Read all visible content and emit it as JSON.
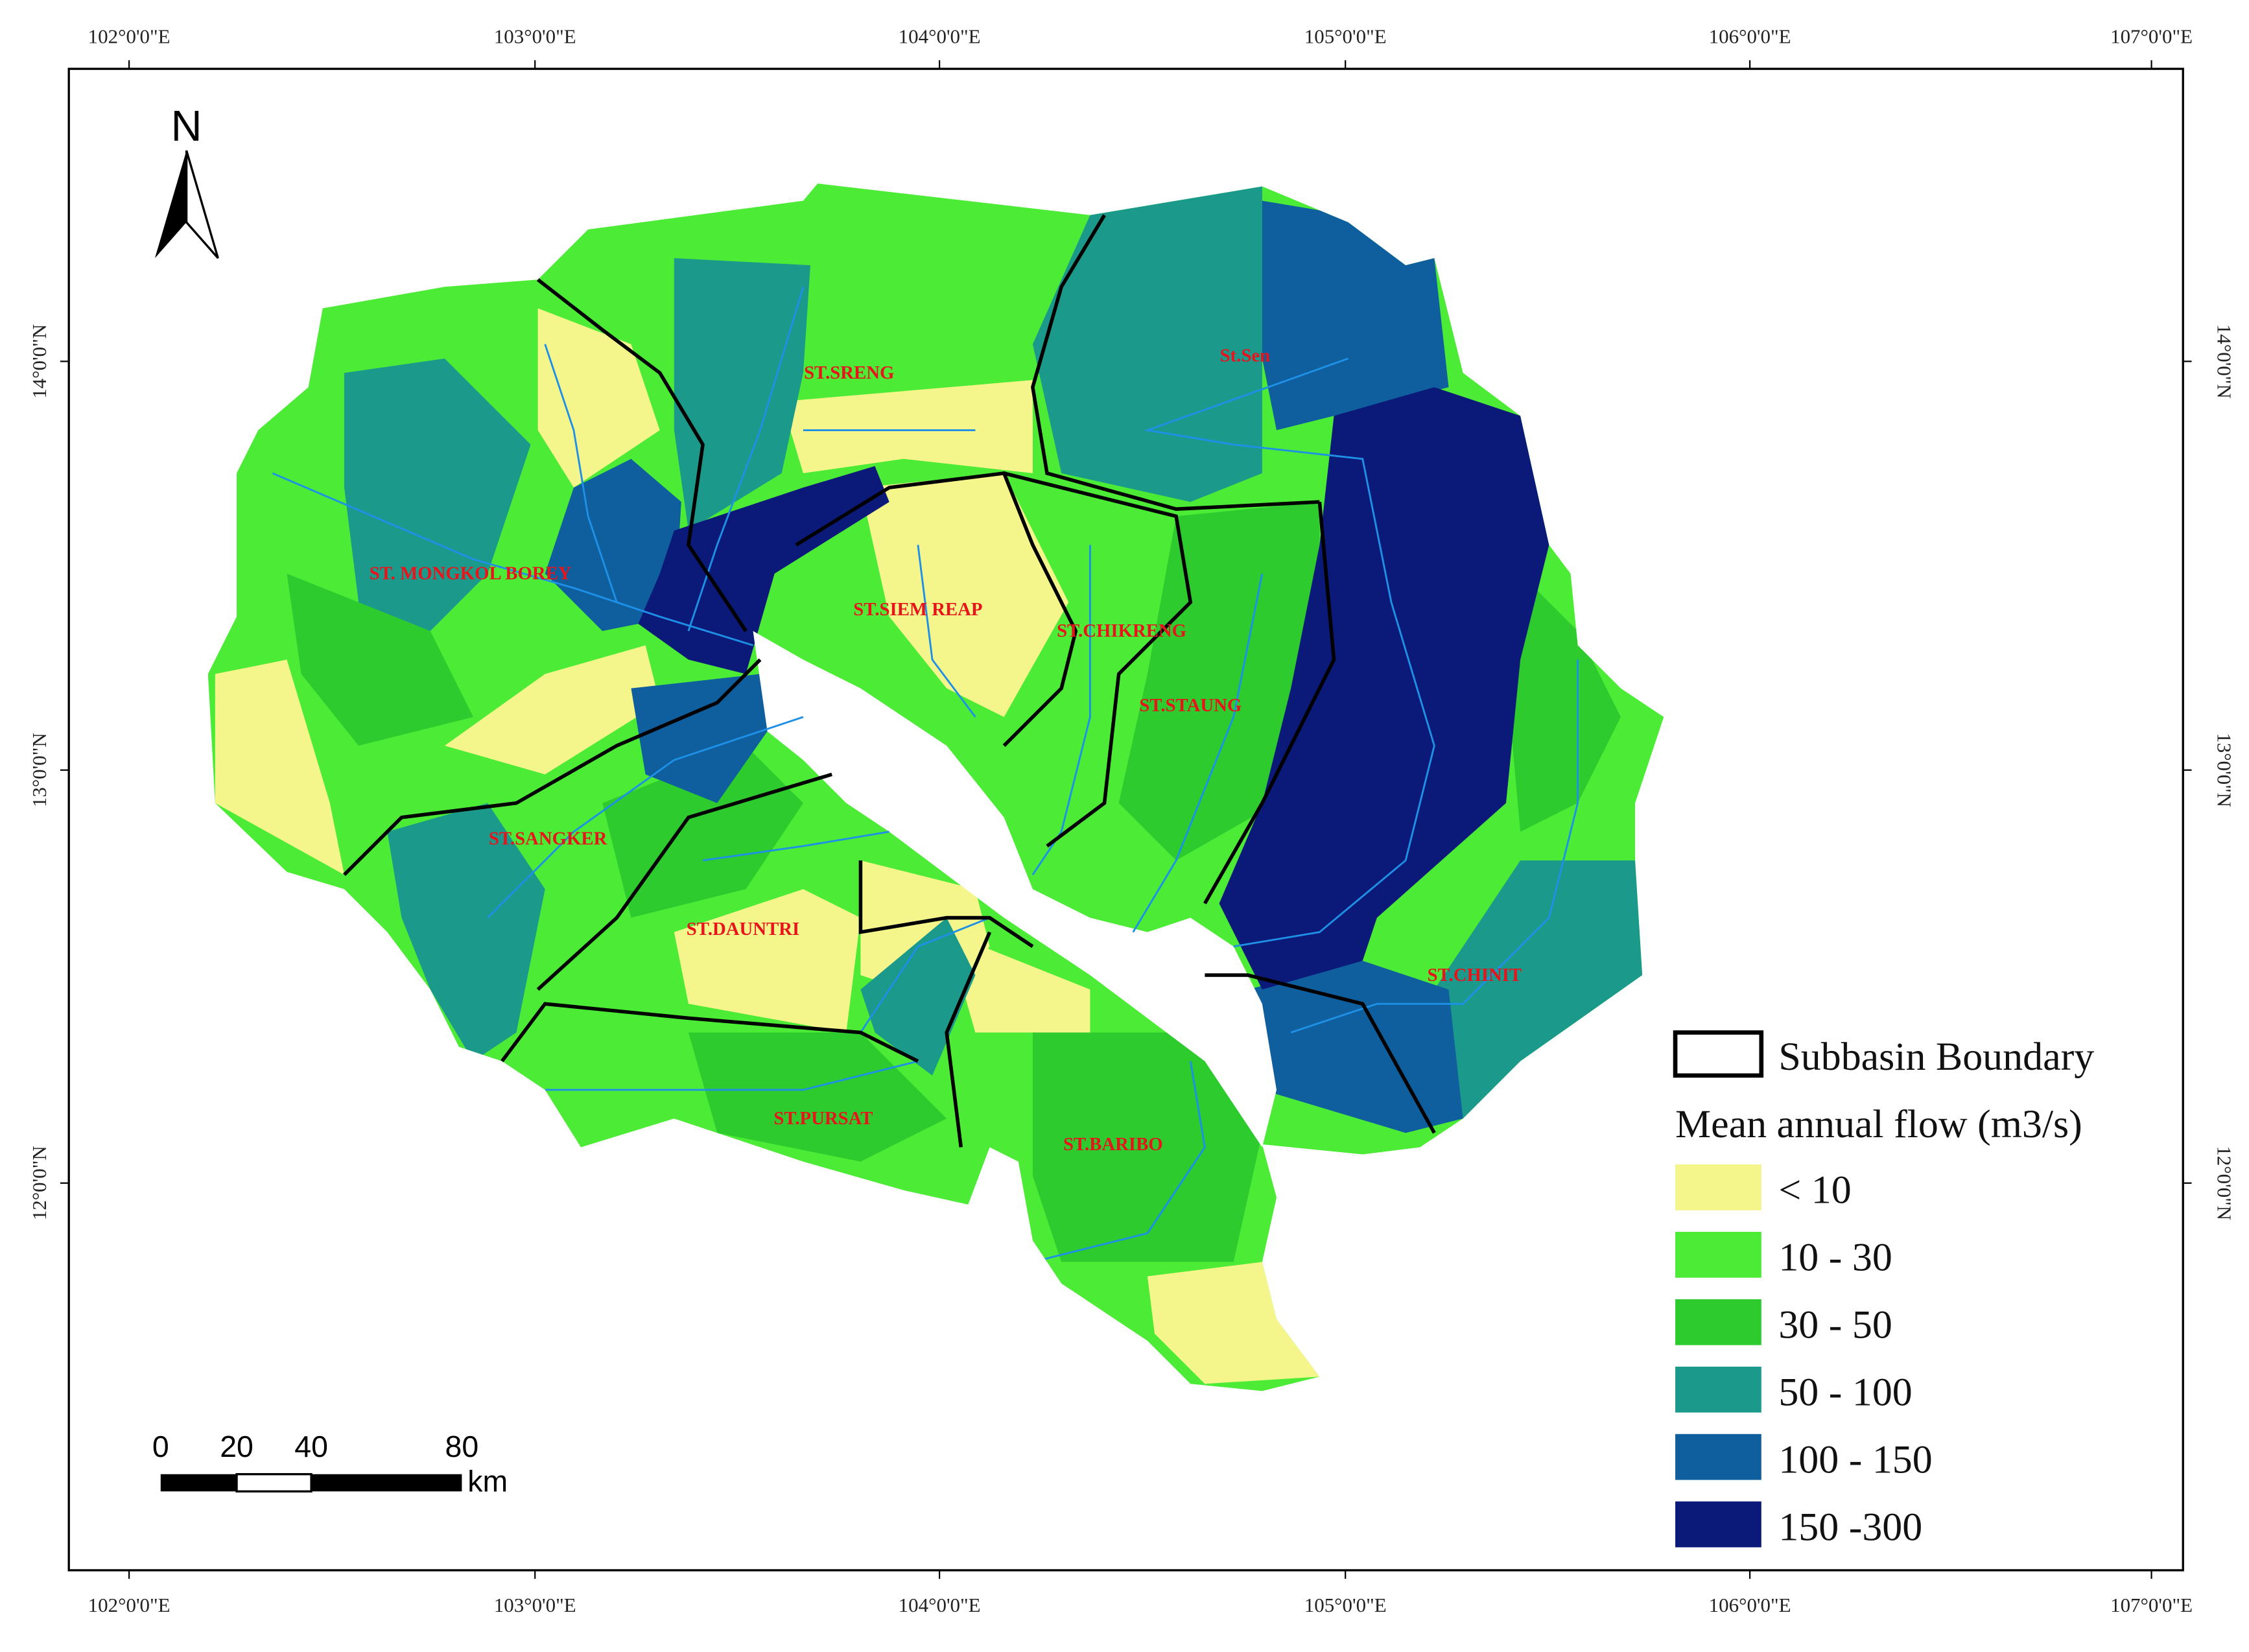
{
  "north": "N",
  "longitude_labels": [
    "102°0'0\"E",
    "103°0'0\"E",
    "104°0'0\"E",
    "105°0'0\"E",
    "106°0'0\"E",
    "107°0'0\"E"
  ],
  "latitude_labels": [
    "14°0'0\"N",
    "13°0'0\"N",
    "12°0'0\"N"
  ],
  "subbasins": [
    "ST.SRENG",
    "St.Sen",
    "ST. MONGKOL BOREY",
    "ST.SIEM REAP",
    "ST.CHIKRENG",
    "ST.STAUNG",
    "ST.SANGKER",
    "ST.DAUNTRI",
    "ST.CHINIT",
    "ST.PURSAT",
    "ST.BARIBO"
  ],
  "scale_bar": {
    "labels": [
      "0",
      "20",
      "40",
      "80"
    ],
    "unit": "km"
  },
  "legend": {
    "boundary": "Subbasin Boundary",
    "title": "Mean annual flow (m3/s)",
    "classes": [
      {
        "label": "< 10",
        "color": "#f4f58a"
      },
      {
        "label": "10 - 30",
        "color": "#4cec36"
      },
      {
        "label": "30 - 50",
        "color": "#2ecb2e"
      },
      {
        "label": "50 - 100",
        "color": "#1b9a8c"
      },
      {
        "label": "100 - 150",
        "color": "#0f5e9e"
      },
      {
        "label": "150 -300",
        "color": "#0b1a78"
      }
    ]
  }
}
